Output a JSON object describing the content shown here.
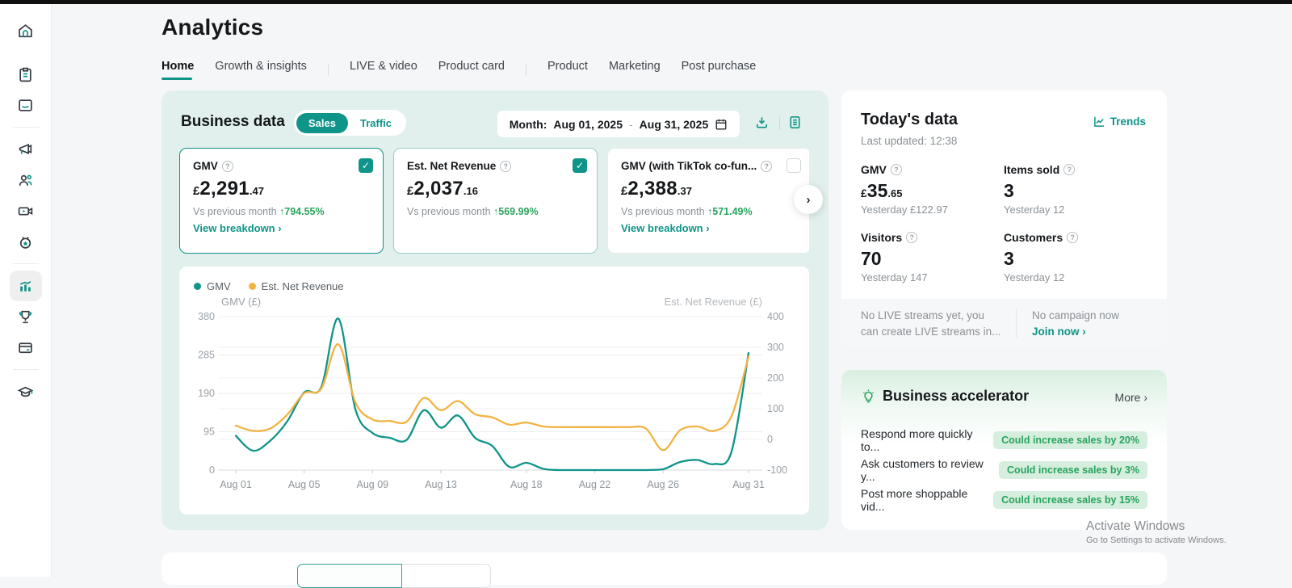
{
  "colors": {
    "accent_teal": "#0e9488",
    "series_yellow": "#f2b344",
    "positive_green": "#2aa35c",
    "panel_mint": "#e1f0ec",
    "pill_green_bg": "#d6eedd"
  },
  "page": {
    "title": "Analytics"
  },
  "sidebar": {
    "icons": [
      "home-icon",
      "orders-clipboard-icon",
      "messages-envelope-icon",
      "marketing-megaphone-icon",
      "affiliate-people-icon",
      "video-camera-icon",
      "live-tv-icon",
      "analytics-chart-icon",
      "competition-trophy-icon",
      "finance-card-icon",
      "academy-graduation-icon"
    ]
  },
  "tabs": [
    {
      "label": "Home"
    },
    {
      "label": "Growth & insights"
    },
    {
      "label": "LIVE & video"
    },
    {
      "label": "Product card"
    },
    {
      "label": "Product"
    },
    {
      "label": "Marketing"
    },
    {
      "label": "Post purchase"
    }
  ],
  "business_data": {
    "title": "Business data",
    "toggle": {
      "sales": "Sales",
      "traffic": "Traffic"
    },
    "month_label": "Month:",
    "date_start": "Aug 01, 2025",
    "date_dash": "-",
    "date_end": "Aug 31, 2025",
    "cards": [
      {
        "title": "GMV",
        "currency": "£",
        "int": "2,291",
        "dec": ".47",
        "vs_label": "Vs previous month",
        "delta": "↑794.55%",
        "breakdown": "View breakdown ›",
        "checked": true
      },
      {
        "title": "Est. Net Revenue",
        "currency": "£",
        "int": "2,037",
        "dec": ".16",
        "vs_label": "Vs previous month",
        "delta": "↑569.99%",
        "checked": true
      },
      {
        "title": "GMV (with TikTok co-fun...",
        "currency": "£",
        "int": "2,388",
        "dec": ".37",
        "vs_label": "Vs previous month",
        "delta": "↑571.49%",
        "breakdown": "View breakdown ›",
        "checked": false
      }
    ],
    "next_arrow": "›"
  },
  "chart_data": {
    "type": "line",
    "x_range": [
      "Aug 01, 2025",
      "Aug 31, 2025"
    ],
    "x_ticks": {
      "labels": [
        "Aug 01",
        "Aug 05",
        "Aug 09",
        "Aug 13",
        "Aug 18",
        "Aug 22",
        "Aug 26",
        "Aug 31"
      ],
      "days": [
        1,
        5,
        9,
        13,
        18,
        22,
        26,
        31
      ]
    },
    "left_axis": {
      "title": "GMV (£)",
      "min": 0,
      "max": 380,
      "ticks": [
        380,
        285,
        190,
        95,
        0
      ]
    },
    "right_axis": {
      "title": "Est. Net Revenue (£)",
      "min": -100,
      "max": 400,
      "ticks": [
        400,
        300,
        200,
        100,
        0,
        -100
      ]
    },
    "grid": true,
    "legend_position": "top-left",
    "series": [
      {
        "name": "GMV",
        "axis": "left",
        "color": "#0e9488",
        "values": [
          85,
          48,
          72,
          120,
          192,
          205,
          375,
          150,
          92,
          80,
          75,
          148,
          105,
          135,
          80,
          60,
          8,
          18,
          3,
          0,
          0,
          0,
          0,
          0,
          0,
          2,
          20,
          25,
          15,
          45,
          290
        ]
      },
      {
        "name": "Est. Net Revenue",
        "axis": "right",
        "color": "#f2b344",
        "values": [
          45,
          28,
          35,
          80,
          150,
          165,
          310,
          120,
          65,
          60,
          58,
          135,
          95,
          125,
          82,
          72,
          48,
          55,
          42,
          40,
          40,
          40,
          40,
          40,
          35,
          -35,
          30,
          42,
          28,
          75,
          270
        ]
      }
    ]
  },
  "today": {
    "title": "Today's data",
    "trends": "Trends",
    "last_updated": "Last updated: 12:38",
    "metrics": [
      {
        "label": "GMV",
        "currency": "£",
        "int": "35",
        "dec": ".65",
        "yesterday": "Yesterday £122.97"
      },
      {
        "label": "Items sold",
        "int": "3",
        "yesterday": "Yesterday 12"
      },
      {
        "label": "Visitors",
        "int": "70",
        "yesterday": "Yesterday 147"
      },
      {
        "label": "Customers",
        "int": "3",
        "yesterday": "Yesterday 12"
      }
    ],
    "live_note_1": "No LIVE streams yet, you",
    "live_note_2": "can create LIVE streams in...",
    "campaign_note": "No campaign now",
    "join_now": "Join now ›"
  },
  "accelerator": {
    "title": "Business accelerator",
    "more": "More  ›",
    "items": [
      {
        "label": "Respond more quickly to...",
        "badge": "Could increase sales by 20%"
      },
      {
        "label": "Ask customers to review y...",
        "badge": "Could increase sales by 3%"
      },
      {
        "label": "Post more shoppable vid...",
        "badge": "Could increase sales by 15%"
      }
    ]
  },
  "watermark": {
    "title": "Activate Windows",
    "subtitle": "Go to Settings to activate Windows."
  }
}
